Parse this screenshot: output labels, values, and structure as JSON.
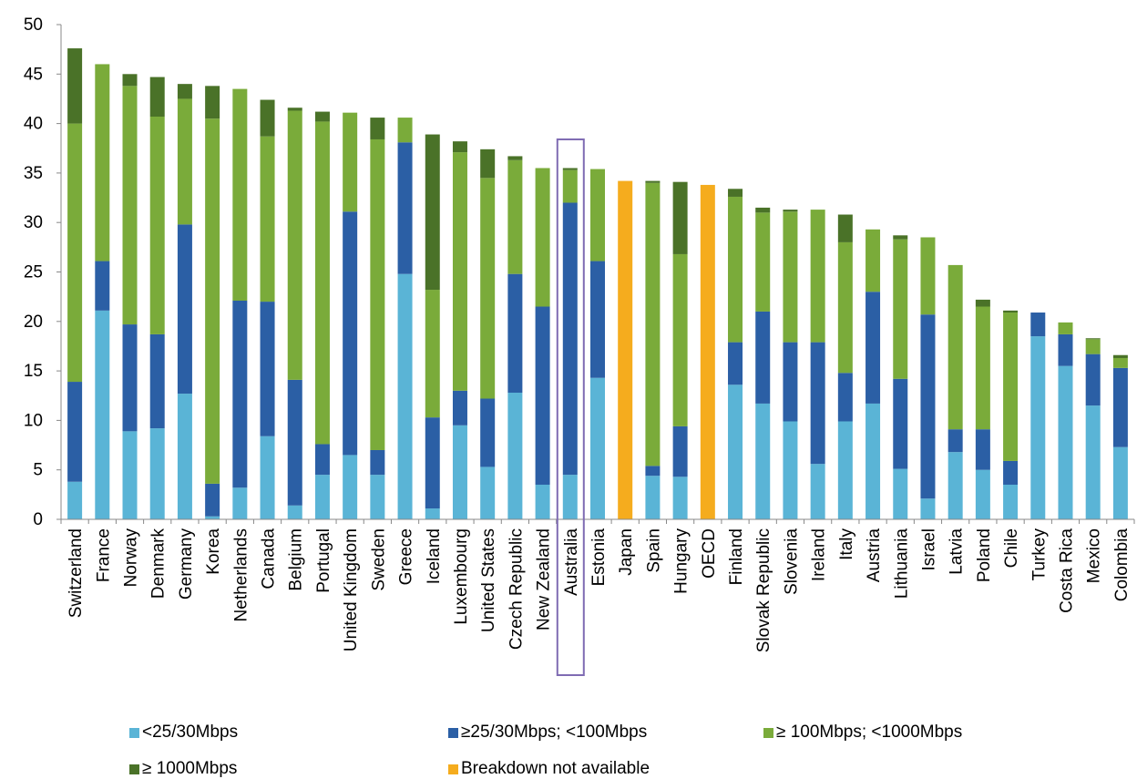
{
  "chart_data": {
    "type": "bar",
    "stacked": true,
    "categories": [
      "Switzerland",
      "France",
      "Norway",
      "Denmark",
      "Germany",
      "Korea",
      "Netherlands",
      "Canada",
      "Belgium",
      "Portugal",
      "United Kingdom",
      "Sweden",
      "Greece",
      "Iceland",
      "Luxembourg",
      "United States",
      "Czech Republic",
      "New Zealand",
      "Australia",
      "Estonia",
      "Japan",
      "Spain",
      "Hungary",
      "OECD",
      "Finland",
      "Slovak Republic",
      "Slovenia",
      "Ireland",
      "Italy",
      "Austria",
      "Lithuania",
      "Israel",
      "Latvia",
      "Poland",
      "Chile",
      "Turkey",
      "Costa Rica",
      "Mexico",
      "Colombia"
    ],
    "series": [
      {
        "name": "<25/30Mbps",
        "color": "#5ab4d6",
        "values": [
          3.8,
          21.1,
          8.9,
          9.2,
          12.7,
          0.3,
          3.2,
          8.4,
          1.4,
          4.5,
          6.5,
          4.5,
          24.8,
          1.1,
          9.5,
          5.3,
          12.8,
          3.5,
          4.5,
          14.3,
          0,
          4.4,
          4.3,
          0,
          13.6,
          11.7,
          9.9,
          5.6,
          9.9,
          11.7,
          5.1,
          2.1,
          6.8,
          5.0,
          3.5,
          18.5,
          15.5,
          11.5,
          7.3
        ]
      },
      {
        "name": "≥25/30Mbps; <100Mbps",
        "color": "#2b5fa5",
        "values": [
          10.1,
          5.0,
          10.8,
          9.5,
          17.1,
          3.3,
          18.9,
          13.6,
          12.7,
          3.1,
          24.6,
          2.5,
          13.3,
          9.2,
          3.5,
          6.9,
          12.0,
          18.0,
          27.5,
          11.8,
          0,
          1.0,
          5.1,
          0,
          4.3,
          9.3,
          8.0,
          12.3,
          4.9,
          11.3,
          9.1,
          18.6,
          2.3,
          4.1,
          2.4,
          2.4,
          3.2,
          5.2,
          8.0
        ]
      },
      {
        "name": "≥ 100Mbps; <1000Mbps",
        "color": "#7aab3a",
        "values": [
          26.1,
          19.9,
          24.1,
          22.0,
          12.7,
          36.9,
          21.4,
          16.7,
          27.2,
          32.6,
          10.0,
          31.4,
          2.5,
          12.9,
          24.1,
          22.3,
          11.5,
          14.0,
          3.3,
          9.3,
          0,
          28.6,
          17.4,
          0,
          14.7,
          10.0,
          13.2,
          13.4,
          13.2,
          6.3,
          14.1,
          7.8,
          16.6,
          12.4,
          15.0,
          0,
          1.2,
          1.5,
          1.0
        ]
      },
      {
        "name": "≥ 1000Mbps",
        "color": "#4a7228",
        "values": [
          7.6,
          0,
          1.2,
          4.0,
          1.5,
          3.3,
          0,
          3.7,
          0.3,
          1.0,
          0,
          2.2,
          0,
          15.7,
          1.1,
          2.9,
          0.4,
          0,
          0.2,
          0,
          0,
          0.2,
          7.3,
          0,
          0.8,
          0.5,
          0.2,
          0,
          2.8,
          0,
          0.4,
          0,
          0,
          0.7,
          0.2,
          0,
          0,
          0.1,
          0.3
        ]
      },
      {
        "name": "Breakdown not available",
        "color": "#f5ac1e",
        "values": [
          0,
          0,
          0,
          0,
          0,
          0,
          0,
          0,
          0,
          0,
          0,
          0,
          0,
          0,
          0,
          0,
          0,
          0,
          0,
          0,
          34.2,
          0,
          0,
          33.8,
          0,
          0,
          0,
          0,
          0,
          0,
          0,
          0,
          0,
          0,
          0,
          0,
          0,
          0,
          0
        ]
      }
    ],
    "ylim": [
      0,
      50
    ],
    "yticks": [
      0,
      5,
      10,
      15,
      20,
      25,
      30,
      35,
      40,
      45,
      50
    ],
    "highlight": "Australia",
    "highlight_color": "#7f6bb3",
    "legend_position": "bottom",
    "grid": false,
    "title": "",
    "xlabel": "",
    "ylabel": ""
  }
}
